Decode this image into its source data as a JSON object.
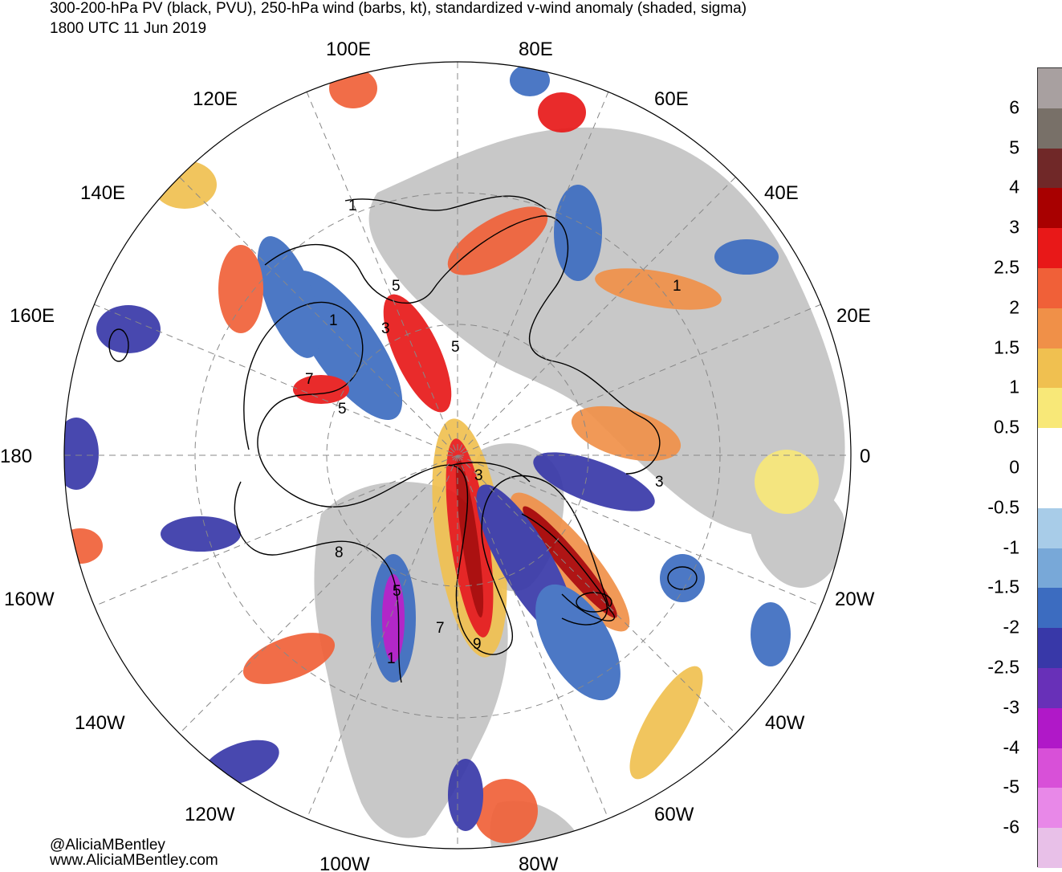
{
  "header": {
    "line1": "300-200-hPa PV (black, PVU), 250-hPa wind (barbs, kt), standardized v-wind anomaly (shaded, sigma)",
    "line2": "1800 UTC 11 Jun 2019"
  },
  "map": {
    "projection": "north polar stereographic",
    "meridian_labels": [
      "100E",
      "80E",
      "120E",
      "60E",
      "140E",
      "40E",
      "160E",
      "20E",
      "180",
      "0",
      "160W",
      "20W",
      "140W",
      "40W",
      "120W",
      "60W",
      "100W",
      "80W"
    ],
    "pv_contour_labels": [
      "1",
      "5",
      "3",
      "5",
      "1",
      "7",
      "5",
      "1",
      "3",
      "3",
      "8",
      "5",
      "7",
      "9",
      "1"
    ],
    "colors": {
      "land": "#c8c8c8",
      "ocean": "#ffffff",
      "pv_contours": "#000000"
    }
  },
  "colorbar": {
    "labels": [
      "6",
      "5",
      "4",
      "3",
      "2.5",
      "2",
      "1.5",
      "1",
      "0.5",
      "0",
      "-0.5",
      "-1",
      "-1.5",
      "-2",
      "-2.5",
      "-3",
      "-4",
      "-5",
      "-6"
    ],
    "colors": [
      "#a8a0a0",
      "#787068",
      "#702828",
      "#a80000",
      "#e81818",
      "#f06038",
      "#f09048",
      "#f0c050",
      "#f8e878",
      "#ffffff",
      "#ffffff",
      "#a8cce8",
      "#78a8d8",
      "#3c6cc0",
      "#3838a8",
      "#6830b8",
      "#b018c8",
      "#d850d8",
      "#e888e8",
      "#e8c0e8"
    ]
  },
  "credits": {
    "handle": "@AliciaMBentley",
    "website": "www.AliciaMBentley.com"
  }
}
